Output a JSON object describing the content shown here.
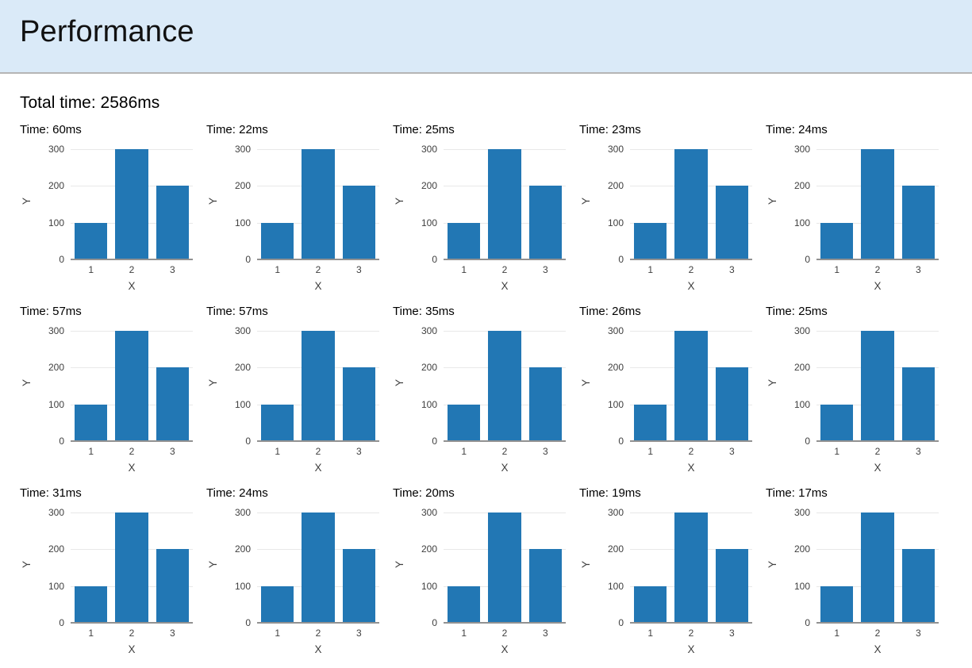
{
  "header": {
    "title": "Performance",
    "background_color": "#daeaf8"
  },
  "summary": {
    "total_time": "Total time: 2586ms"
  },
  "charts": [
    {
      "time_label": "Time: 60ms"
    },
    {
      "time_label": "Time: 22ms"
    },
    {
      "time_label": "Time: 25ms"
    },
    {
      "time_label": "Time: 23ms"
    },
    {
      "time_label": "Time: 24ms"
    },
    {
      "time_label": "Time: 57ms"
    },
    {
      "time_label": "Time: 57ms"
    },
    {
      "time_label": "Time: 35ms"
    },
    {
      "time_label": "Time: 26ms"
    },
    {
      "time_label": "Time: 25ms"
    },
    {
      "time_label": "Time: 31ms"
    },
    {
      "time_label": "Time: 24ms"
    },
    {
      "time_label": "Time: 20ms"
    },
    {
      "time_label": "Time: 19ms"
    },
    {
      "time_label": "Time: 17ms"
    }
  ],
  "chart_data": {
    "type": "bar",
    "categories": [
      "1",
      "2",
      "3"
    ],
    "values": [
      100,
      300,
      200
    ],
    "title": "",
    "xlabel": "X",
    "ylabel": "Y",
    "yticks": [
      0,
      100,
      200,
      300
    ],
    "ylim": [
      0,
      300
    ],
    "grid": true,
    "legend": "none",
    "bar_color": "#2277b4",
    "gridline_color": "#e8e8e8",
    "axis_line_color": "#919191",
    "tick_label_color": "#3f3f3f"
  }
}
